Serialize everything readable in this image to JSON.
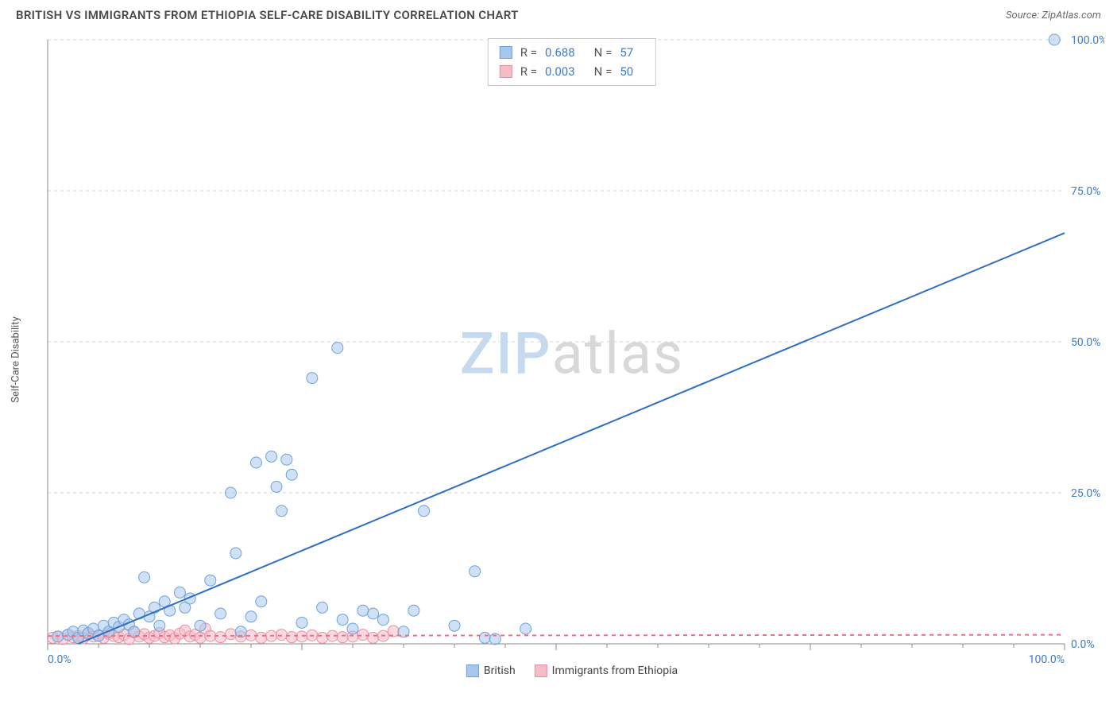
{
  "title": "BRITISH VS IMMIGRANTS FROM ETHIOPIA SELF-CARE DISABILITY CORRELATION CHART",
  "source_label": "Source: ZipAtlas.com",
  "watermark": {
    "part1": "ZIP",
    "part2": "atlas"
  },
  "y_axis_label": "Self-Care Disability",
  "chart": {
    "type": "scatter",
    "xlim": [
      0,
      100
    ],
    "ylim": [
      0,
      100
    ],
    "x_ticks": [
      0,
      25,
      50,
      75,
      100
    ],
    "x_tick_labels": [
      "0.0%",
      "",
      "",
      "",
      "100.0%"
    ],
    "x_minor_ticks": [
      5,
      10,
      15,
      20,
      30,
      35,
      40,
      45,
      55,
      60,
      65,
      70,
      80,
      85,
      90,
      95
    ],
    "y_ticks": [
      0,
      25,
      50,
      75,
      100
    ],
    "y_tick_labels": [
      "0.0%",
      "25.0%",
      "50.0%",
      "75.0%",
      "100.0%"
    ],
    "grid_color": "#d6d6d6",
    "grid_dash": "4,4",
    "axis_color": "#888888",
    "tick_label_color_left": "#3d7cc9",
    "tick_label_color_right": "#3d7cc9",
    "tick_label_fontsize": 14,
    "background_color": "#ffffff",
    "marker_radius": 7,
    "marker_opacity": 0.55,
    "series": [
      {
        "name": "British",
        "color_fill": "#a9c7ec",
        "color_stroke": "#6fa3d9",
        "trend_line": {
          "x1": 3,
          "y1": 0,
          "x2": 100,
          "y2": 68,
          "color": "#2f6fc1",
          "width": 2
        },
        "stats": {
          "R": "0.688",
          "N": "57"
        },
        "points": [
          [
            1,
            1.2
          ],
          [
            2,
            1.5
          ],
          [
            2.5,
            2
          ],
          [
            3,
            1
          ],
          [
            3.5,
            2.2
          ],
          [
            4,
            1.8
          ],
          [
            4.5,
            2.5
          ],
          [
            5,
            1.3
          ],
          [
            5.5,
            3
          ],
          [
            6,
            2
          ],
          [
            6.5,
            3.5
          ],
          [
            7,
            2.8
          ],
          [
            7.5,
            4
          ],
          [
            8,
            3.2
          ],
          [
            8.5,
            2
          ],
          [
            9,
            5
          ],
          [
            9.5,
            11
          ],
          [
            10,
            4.5
          ],
          [
            10.5,
            6
          ],
          [
            11,
            3
          ],
          [
            11.5,
            7
          ],
          [
            12,
            5.5
          ],
          [
            13,
            8.5
          ],
          [
            13.5,
            6
          ],
          [
            14,
            7.5
          ],
          [
            15,
            3
          ],
          [
            16,
            10.5
          ],
          [
            17,
            5
          ],
          [
            18,
            25
          ],
          [
            18.5,
            15
          ],
          [
            19,
            2
          ],
          [
            20,
            4.5
          ],
          [
            20.5,
            30
          ],
          [
            21,
            7
          ],
          [
            22,
            31
          ],
          [
            22.5,
            26
          ],
          [
            23,
            22
          ],
          [
            23.5,
            30.5
          ],
          [
            24,
            28
          ],
          [
            25,
            3.5
          ],
          [
            26,
            44
          ],
          [
            27,
            6
          ],
          [
            28.5,
            49
          ],
          [
            29,
            4
          ],
          [
            30,
            2.5
          ],
          [
            31,
            5.5
          ],
          [
            32,
            5
          ],
          [
            33,
            4
          ],
          [
            35,
            2
          ],
          [
            36,
            5.5
          ],
          [
            37,
            22
          ],
          [
            40,
            3
          ],
          [
            42,
            12
          ],
          [
            43,
            1
          ],
          [
            44,
            0.8
          ],
          [
            47,
            2.5
          ],
          [
            99,
            100
          ]
        ]
      },
      {
        "name": "Immigrants from Ethiopia",
        "color_fill": "#f6bcc8",
        "color_stroke": "#ea8fa3",
        "trend_line": {
          "x1": 0,
          "y1": 1.3,
          "x2": 100,
          "y2": 1.5,
          "color": "#e57389",
          "width": 2,
          "dash": "5,5"
        },
        "stats": {
          "R": "0.003",
          "N": "50"
        },
        "points": [
          [
            0.5,
            1
          ],
          [
            1,
            1.2
          ],
          [
            1.5,
            0.8
          ],
          [
            2,
            1.5
          ],
          [
            2.5,
            1.1
          ],
          [
            3,
            1.3
          ],
          [
            3.5,
            0.9
          ],
          [
            4,
            1.6
          ],
          [
            4.5,
            1.2
          ],
          [
            5,
            1.4
          ],
          [
            5.5,
            1
          ],
          [
            6,
            1.7
          ],
          [
            6.5,
            1.3
          ],
          [
            7,
            1.1
          ],
          [
            7.5,
            1.5
          ],
          [
            8,
            0.8
          ],
          [
            8.5,
            1.9
          ],
          [
            9,
            1.2
          ],
          [
            9.5,
            1.6
          ],
          [
            10,
            1
          ],
          [
            10.5,
            1.3
          ],
          [
            11,
            1.8
          ],
          [
            11.5,
            1.1
          ],
          [
            12,
            1.4
          ],
          [
            12.5,
            0.9
          ],
          [
            13,
            1.7
          ],
          [
            13.5,
            2.2
          ],
          [
            14,
            1.2
          ],
          [
            14.5,
            1.5
          ],
          [
            15,
            1
          ],
          [
            15.5,
            2.5
          ],
          [
            16,
            1.3
          ],
          [
            17,
            1.1
          ],
          [
            18,
            1.6
          ],
          [
            19,
            1.2
          ],
          [
            20,
            1.4
          ],
          [
            21,
            1
          ],
          [
            22,
            1.3
          ],
          [
            23,
            1.5
          ],
          [
            24,
            1.1
          ],
          [
            25,
            1.2
          ],
          [
            26,
            1.4
          ],
          [
            27,
            1
          ],
          [
            28,
            1.3
          ],
          [
            29,
            1.1
          ],
          [
            30,
            1.2
          ],
          [
            31,
            1.5
          ],
          [
            32,
            1
          ],
          [
            33,
            1.3
          ],
          [
            34,
            2.1
          ]
        ]
      }
    ]
  },
  "legend_bottom": [
    {
      "label": "British",
      "fill": "#a9c7ec",
      "stroke": "#6fa3d9"
    },
    {
      "label": "Immigrants from Ethiopia",
      "fill": "#f6bcc8",
      "stroke": "#ea8fa3"
    }
  ]
}
